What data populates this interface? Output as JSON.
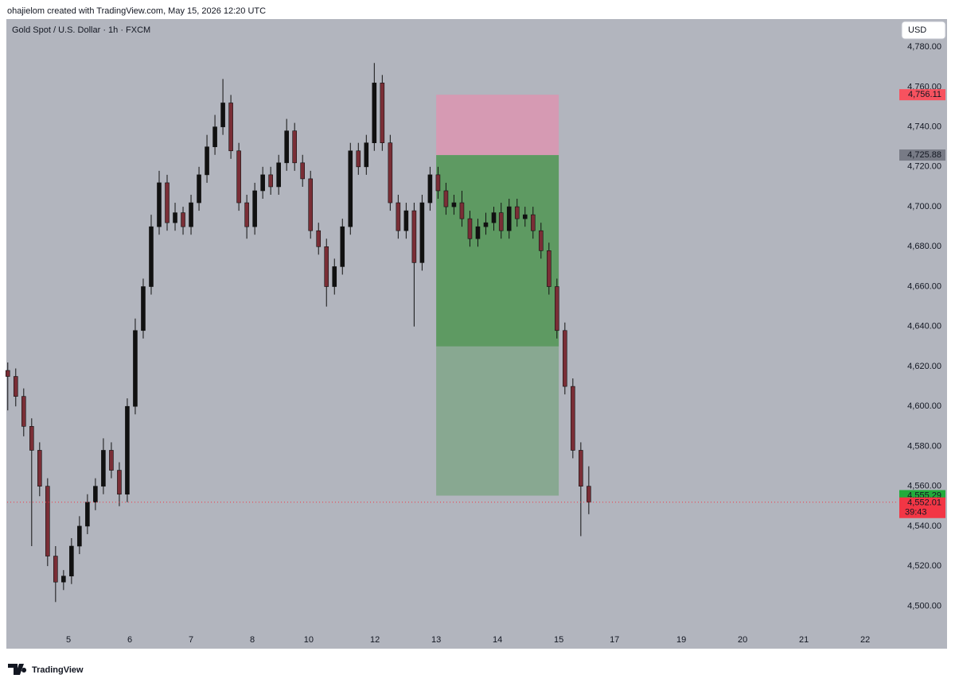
{
  "attribution": "ohajielom created with TradingView.com, May 15, 2026 12:20 UTC",
  "brand": "TradingView",
  "chart_data": {
    "type": "candlestick",
    "title": "Gold Spot / U.S. Dollar · 1h · FXCM",
    "currency_button": "USD",
    "up_color": "#111111",
    "down_color": "#7a2e36",
    "grid": false,
    "xlim": [
      0,
      14.53
    ],
    "ylim": [
      4487,
      4794
    ],
    "xticks": [
      {
        "value": 1.0,
        "label": "5"
      },
      {
        "value": 2.0,
        "label": "6"
      },
      {
        "value": 3.0,
        "label": "7"
      },
      {
        "value": 4.0,
        "label": "8"
      },
      {
        "value": 4.92,
        "label": "10"
      },
      {
        "value": 6.0,
        "label": "12"
      },
      {
        "value": 7.0,
        "label": "13"
      },
      {
        "value": 8.0,
        "label": "14"
      },
      {
        "value": 9.0,
        "label": "15"
      },
      {
        "value": 9.91,
        "label": "17"
      },
      {
        "value": 11.0,
        "label": "19"
      },
      {
        "value": 12.0,
        "label": "20"
      },
      {
        "value": 13.0,
        "label": "21"
      },
      {
        "value": 14.0,
        "label": "22"
      }
    ],
    "yticks": [
      {
        "value": 4500,
        "label": "4,500.00"
      },
      {
        "value": 4520,
        "label": "4,520.00"
      },
      {
        "value": 4540,
        "label": "4,540.00"
      },
      {
        "value": 4560,
        "label": "4,560.00"
      },
      {
        "value": 4580,
        "label": "4,580.00"
      },
      {
        "value": 4600,
        "label": "4,600.00"
      },
      {
        "value": 4620,
        "label": "4,620.00"
      },
      {
        "value": 4640,
        "label": "4,640.00"
      },
      {
        "value": 4660,
        "label": "4,660.00"
      },
      {
        "value": 4680,
        "label": "4,680.00"
      },
      {
        "value": 4700,
        "label": "4,700.00"
      },
      {
        "value": 4720,
        "label": "4,720.00"
      },
      {
        "value": 4740,
        "label": "4,740.00"
      },
      {
        "value": 4760,
        "label": "4,760.00"
      },
      {
        "value": 4780,
        "label": "4,780.00"
      }
    ],
    "x": [
      0.01,
      0.14,
      0.27,
      0.4,
      0.53,
      0.66,
      0.79,
      0.92,
      1.05,
      1.18,
      1.31,
      1.44,
      1.57,
      1.7,
      1.83,
      1.96,
      2.09,
      2.22,
      2.35,
      2.48,
      2.61,
      2.74,
      2.87,
      3.0,
      3.13,
      3.26,
      3.39,
      3.52,
      3.65,
      3.78,
      3.91,
      4.04,
      4.17,
      4.3,
      4.43,
      4.56,
      4.69,
      4.82,
      4.95,
      5.08,
      5.21,
      5.34,
      5.47,
      5.6,
      5.73,
      5.86,
      5.99,
      6.12,
      6.25,
      6.38,
      6.51,
      6.64,
      6.77,
      6.9,
      7.03,
      7.16,
      7.29,
      7.42,
      7.55,
      7.68,
      7.81,
      7.94,
      8.06,
      8.19,
      8.32,
      8.45,
      8.58,
      8.71,
      8.84,
      8.97,
      9.1,
      9.23,
      9.36,
      9.49
    ],
    "open": [
      4618,
      4615,
      4605,
      4590,
      4578,
      4560,
      4525,
      4512,
      4515,
      4530,
      4540,
      4552,
      4560,
      4578,
      4568,
      4556,
      4600,
      4638,
      4660,
      4690,
      4712,
      4692,
      4697,
      4690,
      4702,
      4716,
      4730,
      4740,
      4752,
      4728,
      4702,
      4690,
      4708,
      4716,
      4710,
      4722,
      4738,
      4722,
      4714,
      4688,
      4680,
      4660,
      4670,
      4690,
      4728,
      4720,
      4732,
      4762,
      4732,
      4702,
      4688,
      4698,
      4672,
      4702,
      4716,
      4708,
      4700,
      4702,
      4694,
      4684,
      4690,
      4692,
      4697,
      4688,
      4700,
      4694,
      4696,
      4688,
      4678,
      4660,
      4638,
      4610,
      4578,
      4560
    ],
    "high": [
      4622,
      4619,
      4609,
      4594,
      4582,
      4564,
      4530,
      4518,
      4534,
      4545,
      4556,
      4564,
      4584,
      4582,
      4572,
      4604,
      4644,
      4664,
      4696,
      4718,
      4716,
      4702,
      4700,
      4706,
      4720,
      4736,
      4746,
      4764,
      4756,
      4732,
      4706,
      4712,
      4720,
      4720,
      4726,
      4744,
      4742,
      4726,
      4718,
      4692,
      4684,
      4674,
      4694,
      4732,
      4732,
      4736,
      4772,
      4766,
      4736,
      4706,
      4702,
      4702,
      4706,
      4720,
      4720,
      4712,
      4706,
      4708,
      4698,
      4694,
      4697,
      4700,
      4702,
      4704,
      4704,
      4700,
      4700,
      4692,
      4682,
      4664,
      4642,
      4614,
      4582,
      4570
    ],
    "low": [
      4598,
      4600,
      4585,
      4530,
      4555,
      4520,
      4502,
      4508,
      4511,
      4526,
      4536,
      4548,
      4556,
      4564,
      4550,
      4552,
      4596,
      4634,
      4656,
      4686,
      4688,
      4688,
      4686,
      4686,
      4698,
      4712,
      4726,
      4736,
      4724,
      4698,
      4684,
      4686,
      4704,
      4706,
      4706,
      4718,
      4718,
      4710,
      4684,
      4676,
      4650,
      4656,
      4666,
      4686,
      4716,
      4716,
      4728,
      4728,
      4698,
      4684,
      4684,
      4640,
      4668,
      4698,
      4704,
      4696,
      4696,
      4690,
      4680,
      4680,
      4686,
      4688,
      4684,
      4684,
      4690,
      4690,
      4684,
      4674,
      4656,
      4634,
      4606,
      4574,
      4535,
      4546
    ],
    "close": [
      4615,
      4605,
      4590,
      4578,
      4560,
      4525,
      4512,
      4515,
      4530,
      4540,
      4552,
      4560,
      4578,
      4568,
      4556,
      4600,
      4638,
      4660,
      4690,
      4712,
      4692,
      4697,
      4690,
      4702,
      4716,
      4730,
      4740,
      4752,
      4728,
      4702,
      4690,
      4708,
      4716,
      4710,
      4722,
      4738,
      4722,
      4714,
      4688,
      4680,
      4660,
      4670,
      4690,
      4728,
      4720,
      4732,
      4762,
      4732,
      4702,
      4688,
      4698,
      4672,
      4702,
      4716,
      4708,
      4700,
      4702,
      4694,
      4684,
      4690,
      4692,
      4697,
      4688,
      4700,
      4694,
      4696,
      4688,
      4678,
      4660,
      4638,
      4610,
      4578,
      4560,
      4552
    ],
    "position": {
      "x": [
        7.0,
        9.0
      ],
      "stop": 4756.11,
      "entry": 4725.88,
      "progress": 4630,
      "target": 4555.29,
      "stop_color": "#d69ab3",
      "profit_color": "#5e9a62",
      "remaining_color": "#88a891"
    },
    "price_labels": [
      {
        "value": 4756.11,
        "label": "4,756.11",
        "color": "#f7525f"
      },
      {
        "value": 4725.88,
        "label": "4,725.88",
        "color": "#787b86"
      },
      {
        "value": 4555.29,
        "label": "4,555.29",
        "color": "#22ab3b"
      }
    ],
    "last_price": {
      "value": 4552.01,
      "label": "4,552.01",
      "countdown": "39:43",
      "color": "#f23645"
    }
  }
}
